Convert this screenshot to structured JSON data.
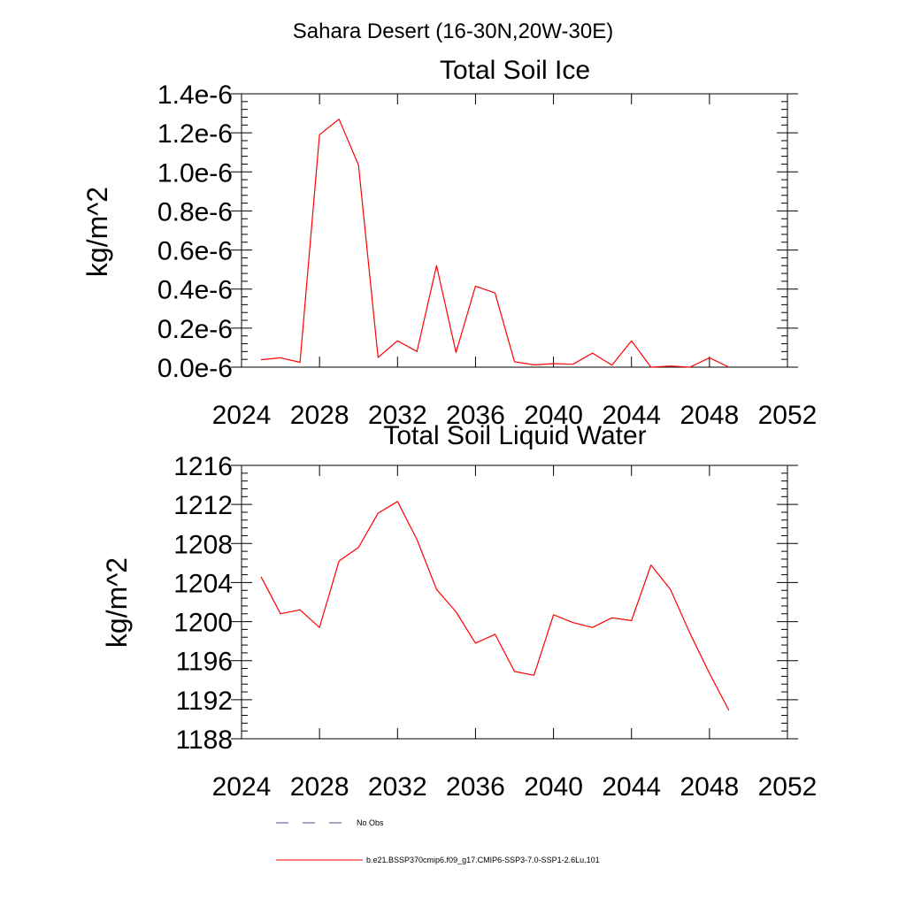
{
  "figure_title": "Sahara Desert (16-30N,20W-30E)",
  "legend": {
    "entries": [
      {
        "label": "No Obs",
        "color": "#4a4a9a",
        "dash": "dashed"
      },
      {
        "label": "b.e21.BSSP370cmip6.f09_g17.CMIP6-SSP3-7.0-SSP1-2.6Lu.101",
        "color": "#ff0000",
        "dash": "solid"
      }
    ]
  },
  "chart_data": [
    {
      "type": "line",
      "title": "Total Soil Ice",
      "ylabel": "kg/m^2",
      "xlabel": "",
      "xlim": [
        2024,
        2052
      ],
      "ylim": [
        0,
        1.4e-06
      ],
      "x_ticks": [
        2024,
        2028,
        2032,
        2036,
        2040,
        2044,
        2048,
        2052
      ],
      "x_tick_labels": [
        "2024",
        "2028",
        "2032",
        "2036",
        "2040",
        "2044",
        "2048",
        "2052"
      ],
      "y_ticks": [
        0,
        2e-07,
        4e-07,
        6e-07,
        8e-07,
        1e-06,
        1.2e-06,
        1.4e-06
      ],
      "y_tick_labels": [
        "0.0e-6",
        "0.2e-6",
        "0.4e-6",
        "0.6e-6",
        "0.8e-6",
        "1.0e-6",
        "1.2e-6",
        "1.4e-6"
      ],
      "grid": false,
      "series": [
        {
          "color": "#ff0000",
          "x": [
            2025,
            2026,
            2027,
            2028,
            2029,
            2030,
            2031,
            2032,
            2033,
            2034,
            2035,
            2036,
            2037,
            2038,
            2039,
            2040,
            2041,
            2042,
            2043,
            2044,
            2045,
            2046,
            2047,
            2048,
            2049
          ],
          "values": [
            3.8e-08,
            4.8e-08,
            2.5e-08,
            1.19e-06,
            1.27e-06,
            1.035e-06,
            5e-08,
            1.35e-07,
            8e-08,
            5.2e-07,
            7.5e-08,
            4.15e-07,
            3.8e-07,
            2.8e-08,
            1.2e-08,
            1.8e-08,
            1.5e-08,
            7.2e-08,
            1e-08,
            1.35e-07,
            0.0,
            6e-09,
            0.0,
            4.8e-08,
            0.0
          ]
        }
      ]
    },
    {
      "type": "line",
      "title": "Total Soil Liquid Water",
      "ylabel": "kg/m^2",
      "xlabel": "",
      "xlim": [
        2024,
        2052
      ],
      "ylim": [
        1188,
        1216
      ],
      "x_ticks": [
        2024,
        2028,
        2032,
        2036,
        2040,
        2044,
        2048,
        2052
      ],
      "x_tick_labels": [
        "2024",
        "2028",
        "2032",
        "2036",
        "2040",
        "2044",
        "2048",
        "2052"
      ],
      "y_ticks": [
        1188,
        1192,
        1196,
        1200,
        1204,
        1208,
        1212,
        1216
      ],
      "y_tick_labels": [
        "1188",
        "1192",
        "1196",
        "1200",
        "1204",
        "1208",
        "1212",
        "1216"
      ],
      "grid": false,
      "series": [
        {
          "color": "#ff0000",
          "x": [
            2025,
            2026,
            2027,
            2028,
            2029,
            2030,
            2031,
            2032,
            2033,
            2034,
            2035,
            2036,
            2037,
            2038,
            2039,
            2040,
            2041,
            2042,
            2043,
            2044,
            2045,
            2046,
            2047,
            2048,
            2049
          ],
          "values": [
            1204.6,
            1200.8,
            1201.2,
            1199.4,
            1206.2,
            1207.6,
            1211.1,
            1212.3,
            1208.4,
            1203.3,
            1201.0,
            1197.8,
            1198.7,
            1194.9,
            1194.5,
            1200.7,
            1199.9,
            1199.4,
            1200.4,
            1200.1,
            1205.8,
            1203.3,
            1198.8,
            1194.7,
            1190.9
          ]
        }
      ]
    }
  ]
}
